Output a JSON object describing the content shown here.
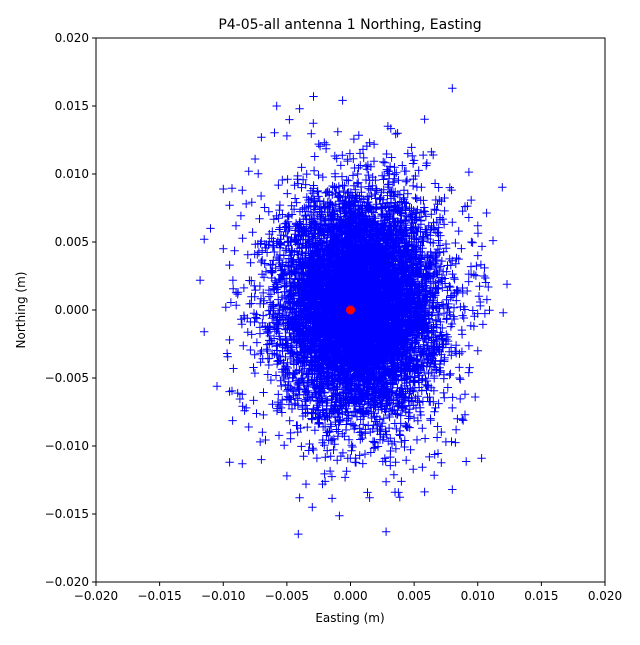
{
  "chart_data": {
    "type": "scatter",
    "title": "P4-05-all antenna 1 Northing, Easting",
    "xlabel": "Easting (m)",
    "ylabel": "Northing (m)",
    "xlim": [
      -0.02,
      0.02
    ],
    "ylim": [
      -0.02,
      0.02
    ],
    "xticks": [
      "−0.020",
      "−0.015",
      "−0.010",
      "−0.005",
      "0.000",
      "0.005",
      "0.010",
      "0.015",
      "0.020"
    ],
    "yticks": [
      "−0.020",
      "−0.015",
      "−0.010",
      "−0.005",
      "0.000",
      "0.005",
      "0.010",
      "0.015",
      "0.020"
    ],
    "grid": false,
    "series": [
      {
        "marker": "+",
        "color": "#0000ff",
        "points": [
          [
            -0.0058,
            0.015
          ],
          [
            -0.004,
            0.0148
          ],
          [
            0.008,
            0.0163
          ],
          [
            -0.0048,
            0.014
          ],
          [
            -0.001,
            0.0131
          ],
          [
            0.0037,
            0.013
          ],
          [
            -0.007,
            0.0127
          ],
          [
            -0.005,
            0.0128
          ],
          [
            0.0015,
            0.0123
          ],
          [
            -0.0025,
            0.0122
          ],
          [
            0.0065,
            0.0114
          ],
          [
            0.005,
            0.011
          ],
          [
            -0.0075,
            0.0111
          ],
          [
            -0.008,
            0.0102
          ],
          [
            0.006,
            0.0108
          ],
          [
            0.0078,
            0.009
          ],
          [
            -0.01,
            0.0089
          ],
          [
            -0.0085,
            0.0088
          ],
          [
            -0.0082,
            0.0078
          ],
          [
            -0.0095,
            0.0077
          ],
          [
            0.009,
            0.0076
          ],
          [
            0.0093,
            0.0068
          ],
          [
            -0.011,
            0.006
          ],
          [
            -0.009,
            0.0062
          ],
          [
            0.01,
            0.0062
          ],
          [
            0.0085,
            0.0058
          ],
          [
            -0.0115,
            0.0052
          ],
          [
            0.0112,
            0.0051
          ],
          [
            0.0095,
            0.005
          ],
          [
            -0.01,
            0.0045
          ],
          [
            -0.0095,
            0.0033
          ],
          [
            0.01,
            0.004
          ],
          [
            0.0097,
            0.0026
          ],
          [
            -0.0098,
            0.0002
          ],
          [
            0.0105,
            0.0025
          ],
          [
            0.0102,
            0.0003
          ],
          [
            0.0123,
            0.0019
          ],
          [
            0.012,
            -0.0002
          ],
          [
            -0.0095,
            -0.0022
          ],
          [
            -0.0115,
            -0.0016
          ],
          [
            -0.0097,
            -0.0032
          ],
          [
            0.0097,
            -0.0012
          ],
          [
            0.01,
            -0.003
          ],
          [
            -0.0092,
            -0.0043
          ],
          [
            0.0093,
            -0.0046
          ],
          [
            -0.0095,
            -0.006
          ],
          [
            -0.0085,
            -0.0062
          ],
          [
            0.009,
            -0.0062
          ],
          [
            -0.0082,
            -0.0072
          ],
          [
            0.0098,
            -0.0064
          ],
          [
            0.008,
            -0.0072
          ],
          [
            -0.008,
            -0.0086
          ],
          [
            0.009,
            -0.0077
          ],
          [
            0.0084,
            -0.008
          ],
          [
            -0.0071,
            -0.0097
          ],
          [
            0.0083,
            -0.0088
          ],
          [
            0.0075,
            -0.0097
          ],
          [
            -0.007,
            -0.011
          ],
          [
            0.0062,
            -0.0108
          ],
          [
            -0.0095,
            -0.0112
          ],
          [
            -0.0085,
            -0.0113
          ],
          [
            -0.005,
            -0.0122
          ],
          [
            0.0103,
            -0.0109
          ],
          [
            0.008,
            -0.0132
          ],
          [
            -0.004,
            -0.0138
          ],
          [
            -0.003,
            -0.0145
          ],
          [
            0.0015,
            -0.0138
          ],
          [
            0.0035,
            -0.0134
          ],
          [
            0.0028,
            -0.0163
          ],
          [
            -0.0035,
            -0.0128
          ],
          [
            0.004,
            -0.0126
          ],
          [
            -0.002,
            -0.0126
          ]
        ]
      },
      {
        "marker": "o",
        "color": "#ff0000",
        "points": [
          [
            0.0,
            0.0
          ]
        ]
      }
    ]
  }
}
